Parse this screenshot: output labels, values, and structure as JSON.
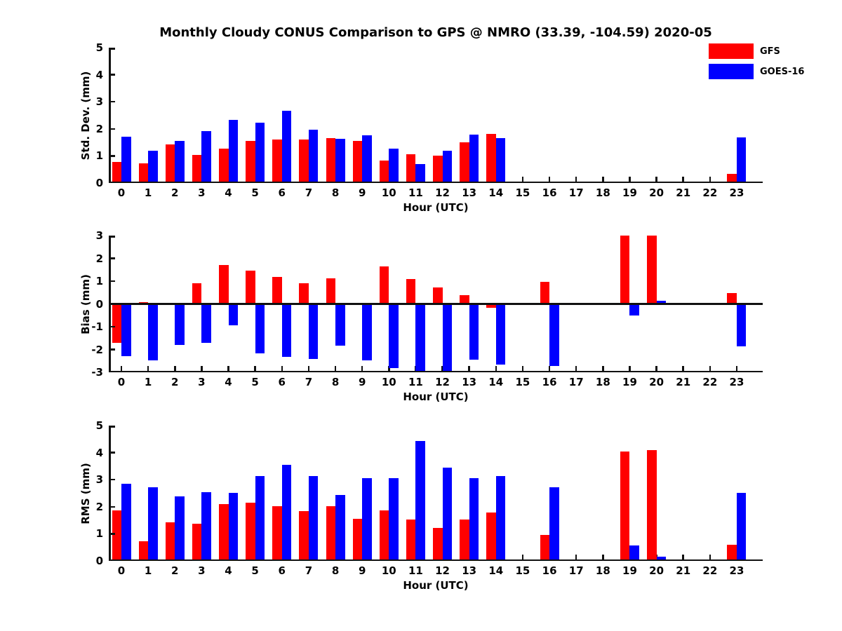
{
  "title": "Monthly Cloudy CONUS Comparison to GPS @ NMRO (33.39, -104.59) 2020-05",
  "legend": {
    "position": "top-right",
    "entries": [
      {
        "label": "GFS",
        "color": "#ff0000"
      },
      {
        "label": "GOES-16",
        "color": "#0000ff"
      }
    ]
  },
  "colors": {
    "gfs": "#ff0000",
    "goes16": "#0000ff",
    "axis": "#111111",
    "background": "#ffffff"
  },
  "chart_data": [
    {
      "type": "bar",
      "ylabel": "Std. Dev. (mm)",
      "xlabel": "Hour (UTC)",
      "ylim": [
        0,
        5
      ],
      "yticks": [
        0,
        1,
        2,
        3,
        4,
        5
      ],
      "grid": false,
      "zero_line": false,
      "categories": [
        0,
        1,
        2,
        3,
        4,
        5,
        6,
        7,
        8,
        9,
        10,
        11,
        12,
        13,
        14,
        15,
        16,
        17,
        18,
        19,
        20,
        21,
        22,
        23
      ],
      "series": [
        {
          "name": "GFS",
          "color": "#ff0000",
          "values": [
            0.78,
            0.73,
            1.42,
            1.04,
            1.28,
            1.55,
            1.6,
            1.6,
            1.66,
            1.56,
            0.83,
            1.07,
            1.0,
            1.5,
            1.81,
            null,
            null,
            null,
            null,
            null,
            null,
            null,
            null,
            0.35
          ]
        },
        {
          "name": "GOES-16",
          "color": "#0000ff",
          "values": [
            1.7,
            1.19,
            1.56,
            1.93,
            2.33,
            2.23,
            2.67,
            1.97,
            1.63,
            1.75,
            1.26,
            0.7,
            1.18,
            1.8,
            1.65,
            null,
            null,
            null,
            null,
            null,
            null,
            null,
            null,
            1.68
          ]
        }
      ]
    },
    {
      "type": "bar",
      "ylabel": "Bias (mm)",
      "xlabel": "Hour (UTC)",
      "ylim": [
        -3,
        3
      ],
      "yticks": [
        -3,
        -2,
        -1,
        0,
        1,
        2,
        3
      ],
      "grid": false,
      "zero_line": true,
      "categories": [
        0,
        1,
        2,
        3,
        4,
        5,
        6,
        7,
        8,
        9,
        10,
        11,
        12,
        13,
        14,
        15,
        16,
        17,
        18,
        19,
        20,
        21,
        22,
        23
      ],
      "series": [
        {
          "name": "GFS",
          "color": "#ff0000",
          "values": [
            -1.72,
            0.07,
            -0.05,
            0.9,
            1.7,
            1.47,
            1.17,
            0.9,
            1.12,
            -0.05,
            1.65,
            1.1,
            0.72,
            0.38,
            -0.18,
            null,
            0.97,
            null,
            null,
            3.0,
            3.0,
            null,
            null,
            0.48
          ]
        },
        {
          "name": "GOES-16",
          "color": "#0000ff",
          "values": [
            -2.3,
            -2.48,
            -1.8,
            -1.72,
            -0.95,
            -2.18,
            -2.33,
            -2.43,
            -1.82,
            -2.47,
            -2.8,
            -3.0,
            -3.0,
            -2.45,
            -2.67,
            null,
            -2.72,
            null,
            null,
            -0.5,
            0.15,
            null,
            null,
            -1.85
          ]
        }
      ]
    },
    {
      "type": "bar",
      "ylabel": "RMS (mm)",
      "xlabel": "Hour (UTC)",
      "ylim": [
        0,
        5
      ],
      "yticks": [
        0,
        1,
        2,
        3,
        4,
        5
      ],
      "grid": false,
      "zero_line": false,
      "categories": [
        0,
        1,
        2,
        3,
        4,
        5,
        6,
        7,
        8,
        9,
        10,
        11,
        12,
        13,
        14,
        15,
        16,
        17,
        18,
        19,
        20,
        21,
        22,
        23
      ],
      "series": [
        {
          "name": "GFS",
          "color": "#ff0000",
          "values": [
            1.86,
            0.73,
            1.43,
            1.38,
            2.1,
            2.15,
            2.01,
            1.85,
            2.01,
            1.56,
            1.87,
            1.54,
            1.22,
            1.53,
            1.79,
            null,
            0.96,
            null,
            null,
            4.03,
            4.1,
            null,
            null,
            0.59
          ]
        },
        {
          "name": "GOES-16",
          "color": "#0000ff",
          "values": [
            2.85,
            2.72,
            2.39,
            2.54,
            2.52,
            3.13,
            3.55,
            3.13,
            2.44,
            3.05,
            3.07,
            4.43,
            3.44,
            3.05,
            3.13,
            null,
            2.72,
            null,
            null,
            0.57,
            0.16,
            null,
            null,
            2.51
          ]
        }
      ]
    }
  ]
}
